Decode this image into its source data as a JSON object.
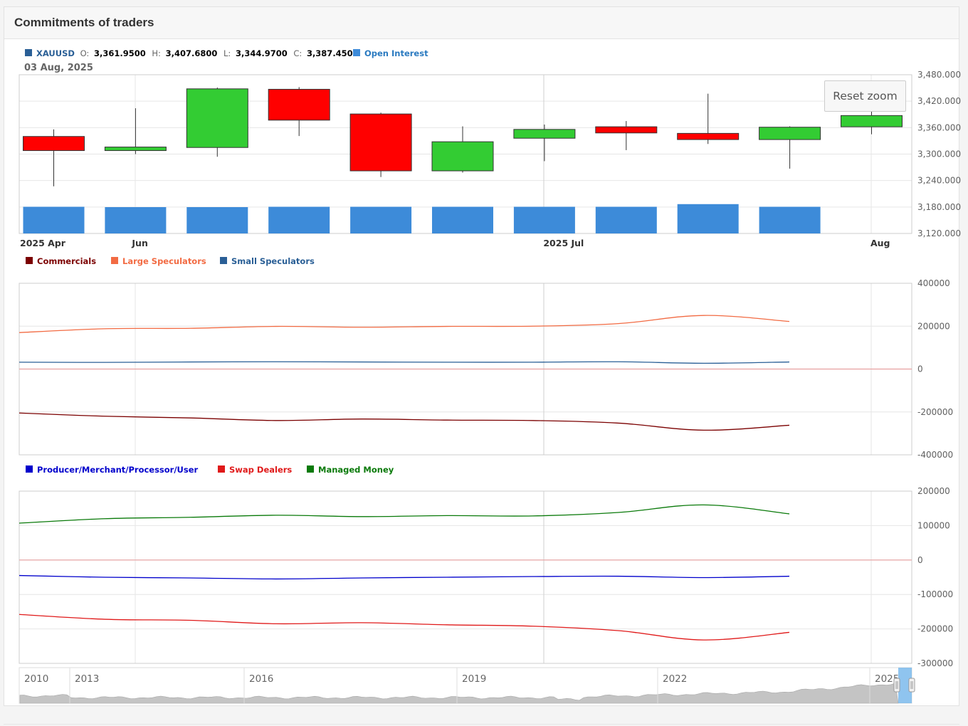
{
  "header": {
    "title": "Commitments of traders"
  },
  "reset_zoom_label": "Reset zoom",
  "colors": {
    "up": "#33cc33",
    "down": "#ff0000",
    "open_interest": "#3d8bd9",
    "commercials": "#7b0000",
    "large_speculators": "#f26b43",
    "small_speculators": "#2a5f96",
    "producer": "#0000cc",
    "swap_dealers": "#e01a1a",
    "managed_money": "#0a7a0a",
    "zero_line": "#e8a0a0",
    "grid": "#e6e6e6"
  },
  "price_info": {
    "symbol": "XAUUSD",
    "o_label": "O:",
    "o": "3,361.9500",
    "h_label": "H:",
    "h": "3,407.6800",
    "l_label": "L:",
    "l": "3,344.9700",
    "c_label": "C:",
    "c": "3,387.4500",
    "oi_label": "Open Interest",
    "date": "03 Aug, 2025"
  },
  "chart_data": [
    {
      "type": "candlestick",
      "ylim": [
        3120,
        3480
      ],
      "y_ticks": [
        3480,
        3420,
        3360,
        3300,
        3240,
        3180,
        3120
      ],
      "y_tick_labels": [
        "3,480.000",
        "3,420.000",
        "3,360.000",
        "3,300.000",
        "3,240.000",
        "3,180.000",
        "3,120.000"
      ],
      "x_labels": [
        {
          "label": "2025 Apr",
          "at": 0
        },
        {
          "label": "Jun",
          "at": 1.37
        },
        {
          "label": "2025 Jul",
          "at": 6.4
        },
        {
          "label": "Aug",
          "at": 10.4
        }
      ],
      "candles": [
        {
          "o": 3340,
          "h": 3356,
          "l": 3227,
          "c": 3308
        },
        {
          "o": 3308,
          "h": 3404,
          "l": 3300,
          "c": 3316
        },
        {
          "o": 3315,
          "h": 3451,
          "l": 3294,
          "c": 3448
        },
        {
          "o": 3447,
          "h": 3452,
          "l": 3341,
          "c": 3377
        },
        {
          "o": 3391,
          "h": 3394,
          "l": 3248,
          "c": 3262
        },
        {
          "o": 3262,
          "h": 3363,
          "l": 3258,
          "c": 3328
        },
        {
          "o": 3336,
          "h": 3367,
          "l": 3284,
          "c": 3356
        },
        {
          "o": 3362,
          "h": 3375,
          "l": 3309,
          "c": 3348
        },
        {
          "o": 3347,
          "h": 3437,
          "l": 3323,
          "c": 3333
        },
        {
          "o": 3333,
          "h": 3363,
          "l": 3267,
          "c": 3361
        },
        {
          "o": 3361.95,
          "h": 3407.68,
          "l": 3344.97,
          "c": 3387.45
        }
      ],
      "open_interest": [
        400000,
        395000,
        395000,
        400000,
        400000,
        400000,
        400000,
        400000,
        440000,
        400000
      ]
    },
    {
      "type": "line",
      "ylim": [
        -400000,
        400000
      ],
      "y_ticks": [
        400000,
        200000,
        0,
        -200000,
        -400000
      ],
      "y_tick_labels": [
        "400000",
        "200000",
        "0",
        "-200000",
        "-400000"
      ],
      "series": [
        {
          "name": "Commercials",
          "values": [
            -205000,
            -220000,
            -228000,
            -240000,
            -233000,
            -238000,
            -240000,
            -252000,
            -285000,
            -262000
          ]
        },
        {
          "name": "Large Speculators",
          "values": [
            170000,
            188000,
            190000,
            199000,
            195000,
            199000,
            200000,
            212000,
            250000,
            222000
          ]
        },
        {
          "name": "Small Speculators",
          "values": [
            32000,
            31000,
            33000,
            34000,
            33000,
            32000,
            32000,
            34000,
            27000,
            33000
          ]
        }
      ]
    },
    {
      "type": "line",
      "ylim": [
        -300000,
        200000
      ],
      "y_ticks": [
        200000,
        100000,
        0,
        -100000,
        -200000,
        -300000
      ],
      "y_tick_labels": [
        "200000",
        "100000",
        "0",
        "-100000",
        "-200000",
        "-300000"
      ],
      "series": [
        {
          "name": "Producer/Merchant/Processor/User",
          "values": [
            -45000,
            -50000,
            -52000,
            -55000,
            -52000,
            -50000,
            -48000,
            -47000,
            -51000,
            -47000
          ]
        },
        {
          "name": "Swap Dealers",
          "values": [
            -158000,
            -172000,
            -175000,
            -185000,
            -182000,
            -188000,
            -192000,
            -205000,
            -232000,
            -210000
          ]
        },
        {
          "name": "Managed Money",
          "values": [
            107000,
            120000,
            124000,
            130000,
            126000,
            129000,
            128000,
            138000,
            160000,
            134000
          ]
        }
      ]
    }
  ],
  "navigator": {
    "labels": [
      "2010",
      "2013",
      "2016",
      "2019",
      "2022",
      "2025"
    ]
  }
}
